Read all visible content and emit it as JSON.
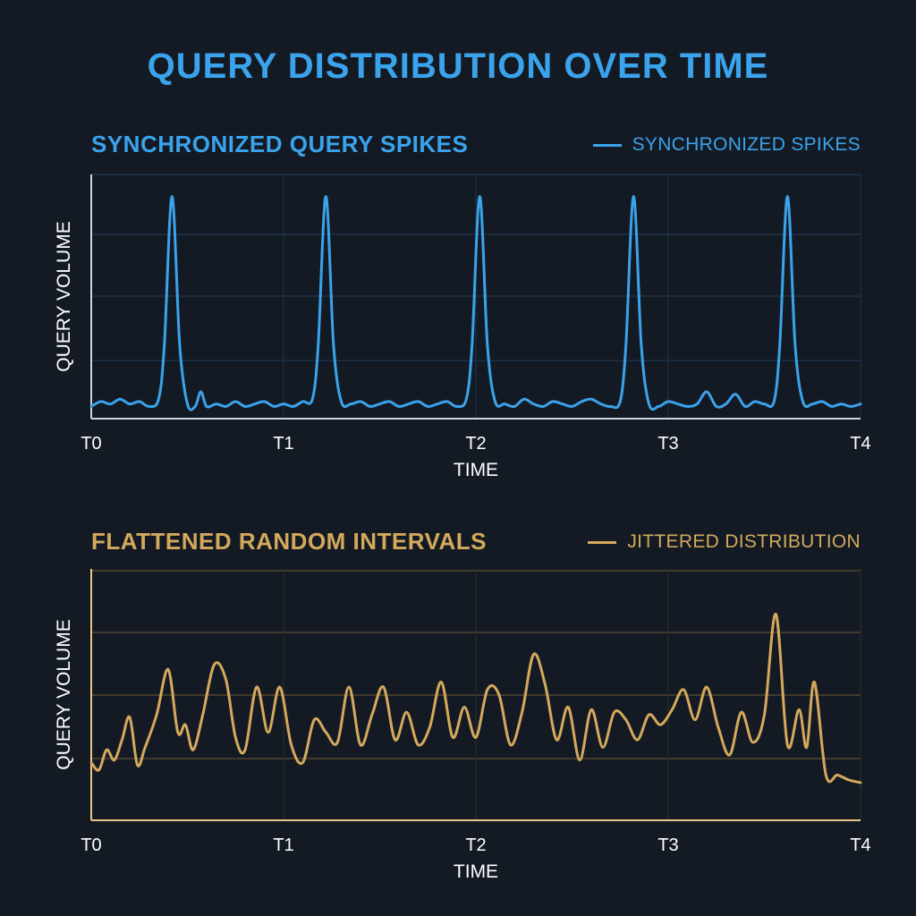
{
  "title": "QUERY DISTRIBUTION OVER TIME",
  "chart_data": [
    {
      "type": "line",
      "title": "SYNCHRONIZED QUERY SPIKES",
      "xlabel": "TIME",
      "ylabel": "QUERY VOLUME",
      "x_ticks": [
        "T0",
        "T1",
        "T2",
        "T3",
        "T4"
      ],
      "xlim": [
        0,
        4
      ],
      "ylim": [
        0,
        1
      ],
      "grid": true,
      "legend_position": "top-right",
      "color": "#3aa3ec",
      "series": [
        {
          "name": "SYNCHRONIZED SPIKES",
          "x": [
            0,
            0.05,
            0.1,
            0.15,
            0.2,
            0.25,
            0.3,
            0.35,
            0.38,
            0.42,
            0.46,
            0.5,
            0.54,
            0.57,
            0.6,
            0.65,
            0.7,
            0.75,
            0.8,
            0.85,
            0.9,
            0.95,
            1.0,
            1.05,
            1.1,
            1.15,
            1.18,
            1.22,
            1.26,
            1.3,
            1.35,
            1.4,
            1.45,
            1.5,
            1.55,
            1.6,
            1.65,
            1.7,
            1.75,
            1.8,
            1.85,
            1.9,
            1.95,
            1.98,
            2.02,
            2.06,
            2.1,
            2.15,
            2.2,
            2.25,
            2.3,
            2.35,
            2.4,
            2.45,
            2.5,
            2.55,
            2.6,
            2.65,
            2.7,
            2.75,
            2.78,
            2.82,
            2.86,
            2.9,
            2.95,
            3.0,
            3.05,
            3.1,
            3.15,
            3.2,
            3.25,
            3.3,
            3.35,
            3.4,
            3.45,
            3.5,
            3.55,
            3.58,
            3.62,
            3.66,
            3.7,
            3.75,
            3.8,
            3.85,
            3.9,
            3.95,
            4.0
          ],
          "y": [
            0.05,
            0.07,
            0.06,
            0.08,
            0.06,
            0.07,
            0.05,
            0.08,
            0.3,
            0.91,
            0.3,
            0.06,
            0.05,
            0.11,
            0.05,
            0.06,
            0.05,
            0.07,
            0.05,
            0.06,
            0.07,
            0.05,
            0.06,
            0.05,
            0.07,
            0.08,
            0.3,
            0.91,
            0.3,
            0.07,
            0.06,
            0.07,
            0.05,
            0.06,
            0.07,
            0.05,
            0.06,
            0.07,
            0.05,
            0.06,
            0.07,
            0.05,
            0.08,
            0.3,
            0.91,
            0.3,
            0.07,
            0.06,
            0.05,
            0.08,
            0.06,
            0.05,
            0.07,
            0.06,
            0.05,
            0.07,
            0.08,
            0.06,
            0.05,
            0.07,
            0.3,
            0.91,
            0.3,
            0.06,
            0.05,
            0.07,
            0.06,
            0.05,
            0.06,
            0.11,
            0.05,
            0.06,
            0.1,
            0.05,
            0.07,
            0.06,
            0.07,
            0.3,
            0.91,
            0.3,
            0.07,
            0.06,
            0.07,
            0.05,
            0.06,
            0.05,
            0.06
          ]
        }
      ]
    },
    {
      "type": "line",
      "title": "FLATTENED RANDOM INTERVALS",
      "xlabel": "TIME",
      "ylabel": "QUERY VOLUME",
      "x_ticks": [
        "T0",
        "T1",
        "T2",
        "T3",
        "T4"
      ],
      "xlim": [
        0,
        4
      ],
      "ylim": [
        0,
        1
      ],
      "grid": true,
      "legend_position": "top-right",
      "color": "#d4a95c",
      "series": [
        {
          "name": "JITTERED DISTRIBUTION",
          "x": [
            0,
            0.04,
            0.08,
            0.12,
            0.16,
            0.2,
            0.24,
            0.28,
            0.34,
            0.4,
            0.45,
            0.49,
            0.53,
            0.58,
            0.64,
            0.7,
            0.75,
            0.8,
            0.86,
            0.92,
            0.98,
            1.04,
            1.1,
            1.16,
            1.22,
            1.28,
            1.34,
            1.4,
            1.46,
            1.52,
            1.58,
            1.64,
            1.7,
            1.76,
            1.82,
            1.88,
            1.94,
            2.0,
            2.06,
            2.12,
            2.18,
            2.24,
            2.3,
            2.36,
            2.42,
            2.48,
            2.54,
            2.6,
            2.66,
            2.72,
            2.78,
            2.84,
            2.9,
            2.96,
            3.02,
            3.08,
            3.14,
            3.2,
            3.26,
            3.32,
            3.38,
            3.44,
            3.5,
            3.56,
            3.62,
            3.68,
            3.72,
            3.76,
            3.82,
            3.88,
            3.94,
            4.0
          ],
          "y": [
            0.23,
            0.2,
            0.28,
            0.24,
            0.32,
            0.41,
            0.22,
            0.29,
            0.42,
            0.6,
            0.35,
            0.38,
            0.28,
            0.42,
            0.62,
            0.56,
            0.33,
            0.28,
            0.53,
            0.35,
            0.53,
            0.3,
            0.23,
            0.4,
            0.35,
            0.31,
            0.53,
            0.3,
            0.42,
            0.53,
            0.32,
            0.43,
            0.3,
            0.37,
            0.55,
            0.33,
            0.45,
            0.33,
            0.52,
            0.5,
            0.3,
            0.43,
            0.66,
            0.54,
            0.32,
            0.45,
            0.24,
            0.44,
            0.29,
            0.43,
            0.4,
            0.32,
            0.42,
            0.38,
            0.44,
            0.52,
            0.4,
            0.53,
            0.37,
            0.26,
            0.43,
            0.31,
            0.42,
            0.82,
            0.3,
            0.44,
            0.29,
            0.55,
            0.18,
            0.18,
            0.16,
            0.15
          ]
        }
      ]
    }
  ]
}
